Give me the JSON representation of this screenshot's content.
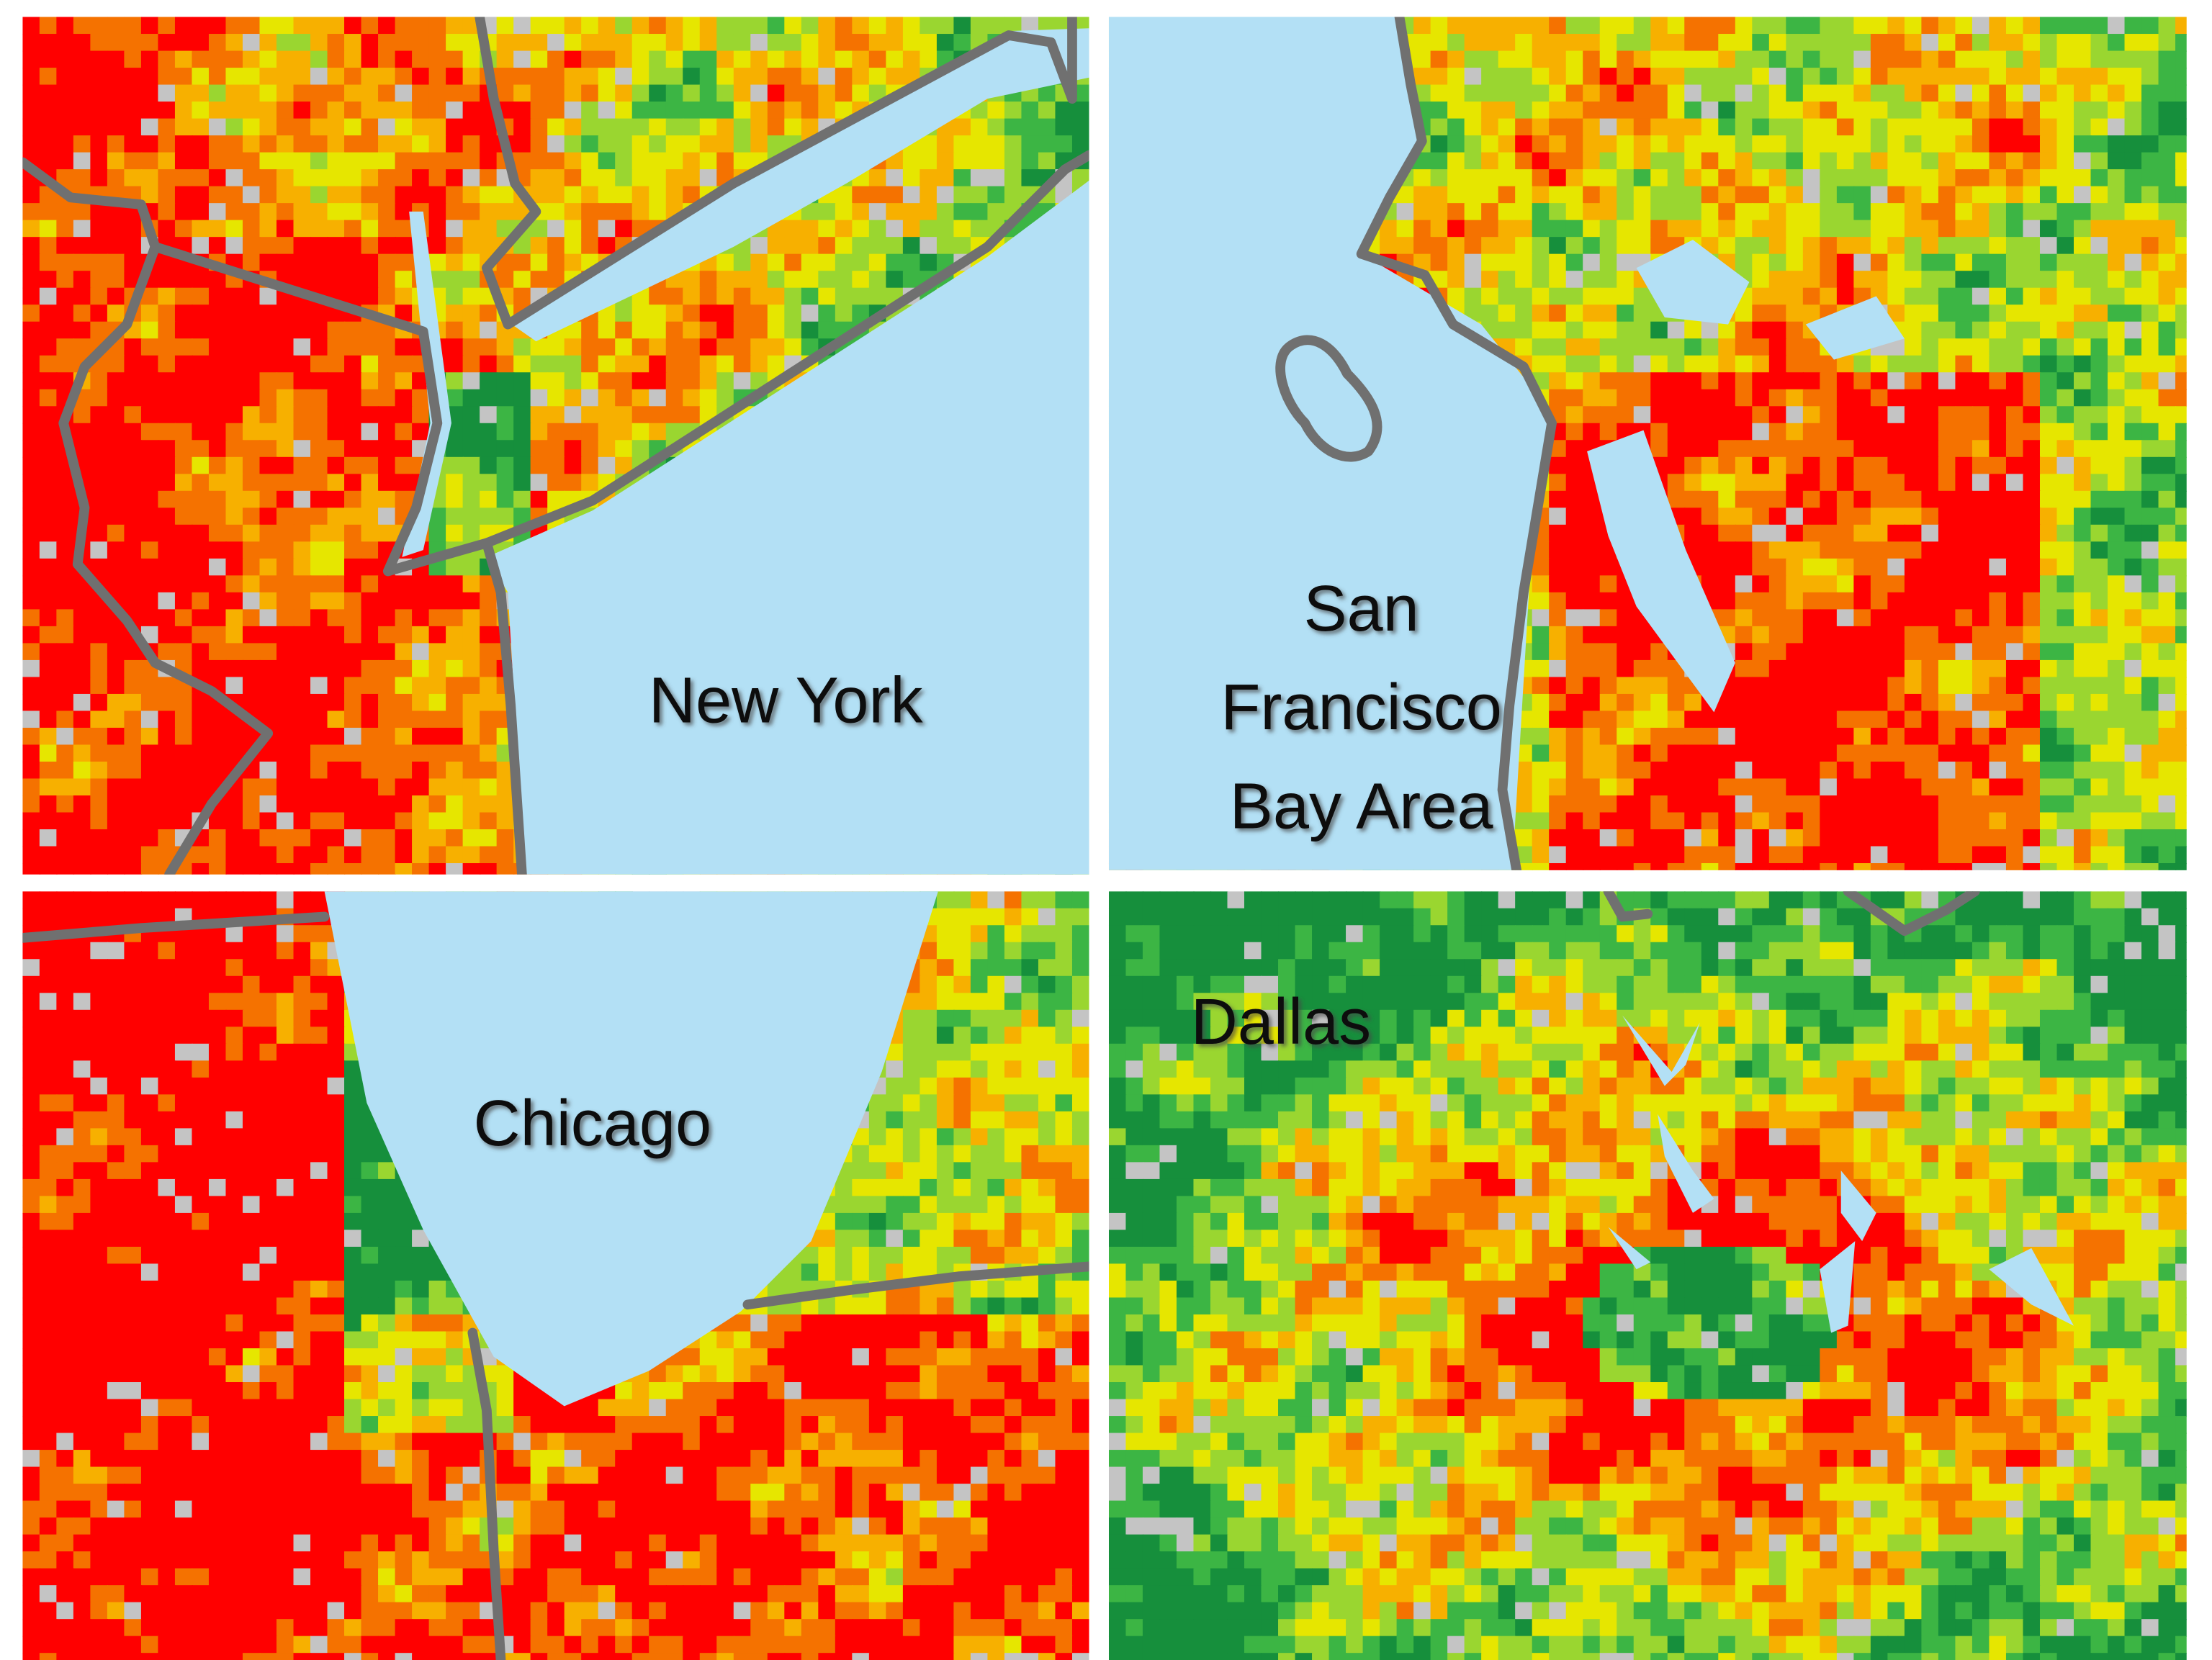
{
  "panels": [
    {
      "label": "New York"
    },
    {
      "label_lines": [
        "San",
        "Francisco",
        "Bay Area"
      ]
    },
    {
      "label": "Chicago"
    },
    {
      "label": "Dallas"
    }
  ]
}
